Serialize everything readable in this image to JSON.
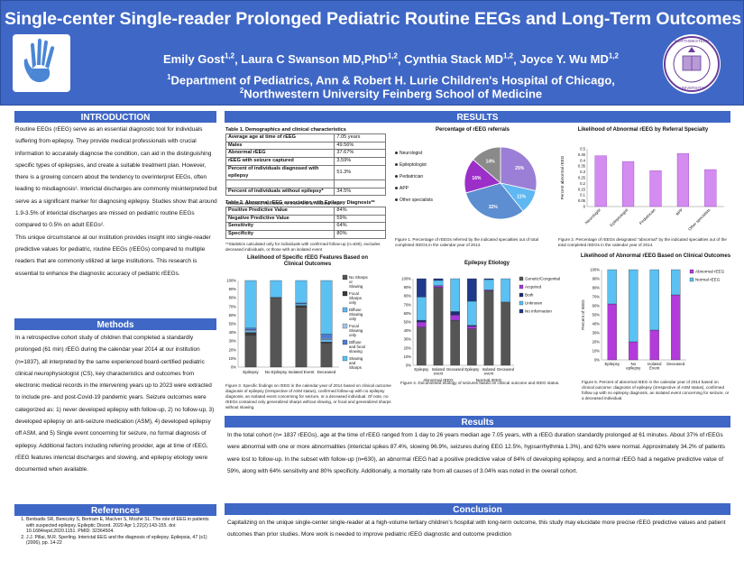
{
  "header": {
    "title": "Single-center Single-reader Prolonged Pediatric Routine EEGs and Long-Term Outcomes",
    "authors": [
      {
        "name": "Emily Gost",
        "sup": "1,2"
      },
      {
        "name": "Laura C Swanson MD,PhD",
        "sup": "1,2"
      },
      {
        "name": "Cynthia Stack MD",
        "sup": "1,2"
      },
      {
        "name": "Joyce Y. Wu MD",
        "sup": "1,2"
      }
    ],
    "affil1_sup": "1",
    "affil1": "Department of Pediatrics, Ann & Robert H. Lurie Children's Hospital of Chicago,",
    "affil2_sup": "2",
    "affil2": "Northwestern University Feinberg School of Medicine",
    "colors": {
      "primary": "#3f67c6"
    }
  },
  "introduction": {
    "heading": "INTRODUCTION",
    "text": "Routine EEGs (rEEG) serve as an essential diagnostic tool for individuals suffering from epilepsy. They provide medical professionals with crucial information to accurately diagnose the condition, can aid in the distinguishing specific types of epilepsies, and create a suitable treatment plan. However, there is a growing concern about the tendency to overinterpret EEGs, often leading to misdiagnosis¹. Interictal discharges are commonly misinterpreted but serve as a significant marker for diagnosing epilepsy. Studies show that around 1.9-3.5% of interictal discharges are missed on pediatric routine EEGs compared to 0.5% on adult EEGs².",
    "text2": "This unique circumstance at our institution provides insight into single-reader predictive values for pediatric, routine EEGs (rEEGs) compared to multiple readers that are commonly utilized at large institutions. This research is essential to enhance the diagnostic accuracy of pediatric rEEGs."
  },
  "methods": {
    "heading": "Methods",
    "text": "In a retrospective cohort study of children that completed a standardly prolonged (61 min) rEEG during the calendar year 2014 at our institution (n=1837), all interpreted by the same experienced board-certified pediatric clinical neurophysiologist (CS), key characteristics and outcomes from electronic medical records in the intervening years up to 2023 were extracted to include pre- and post-Covid-19 pandemic years. Seizure outcomes were categorized as: 1) never developed epilepsy with follow-up, 2) no follow-up, 3) developed epilepsy on anti-seizure medication (ASM), 4) developed epilepsy off ASM, and 5) Single event concerning for seizure, no formal diagnosis of epilepsy. Additional factors including referring provider, age at time of rEEG, rEEG features interictal discharges and slowing, and epilepsy etiology were documented when available."
  },
  "references": {
    "heading": "References",
    "items": [
      "Benbadis SR, Beniczky S, Bertram E, MacIver S, Moshé SL. The role of EEG in patients with suspected epilepsy. Epileptic Disord. 2020 Apr 1;22(2):143-155. doi: 10.1684/epd.2020.1151. PMID: 32364504.",
      "J.J. Pillai, M.R. Sperling. Interictal EEG and the diagnosis of epilepsy. Epilepsia, 47 (s1) (2006), pp. 14-22"
    ]
  },
  "results_top": {
    "heading": "RESULTS",
    "table1": {
      "title": "Table 1. Demographics and clinical characteristics",
      "rows": [
        [
          "Average age at time of rEEG",
          "7.05 years"
        ],
        [
          "Males",
          "49.56%"
        ],
        [
          "Abnormal rEEG",
          "37.67%"
        ],
        [
          "rEEG with seizure captured",
          "3.59%"
        ],
        [
          "Percent of individuals diagnosed with epilepsy",
          "51.3%"
        ],
        [
          "",
          ""
        ],
        [
          "Percent of individuals without epilepsy*",
          "34.5%"
        ]
      ],
      "footnote": "*excludes deceased individuals, or those with an isolated event"
    },
    "table2": {
      "title": "Table 2. Abnormal rEEG association with Epilepsy Diagnosis**",
      "rows": [
        [
          "Positive Predictive Value",
          "84%"
        ],
        [
          "Negative Predictive Value",
          "59%"
        ],
        [
          "Sensitivity",
          "64%"
        ],
        [
          "Specificity",
          "80%"
        ]
      ],
      "footnote": "**Statistics calculated only for individuals with confirmed follow-up (n=630), excludes deceased individuals, or those with an isolated event"
    }
  },
  "fig1": {
    "caption": "Figure 1. Percentage of rEEGs referred by the indicated specialties out of total completed rEEGs in the calendar year of 2014.",
    "chart_data": {
      "type": "pie",
      "title": "Percentage of rEEG referrals",
      "labels": [
        "Neurologist",
        "Epileptologist",
        "Pediatrician",
        "APP",
        "Other specialists"
      ],
      "values": [
        29,
        11,
        32,
        16,
        14
      ],
      "data_labels": [
        "29%",
        "11%",
        "32%",
        "16%",
        "14%"
      ],
      "colors": [
        "#9b7fd6",
        "#5fb8f2",
        "#5c8ed1",
        "#9b2fc8",
        "#8a8a8a"
      ]
    }
  },
  "fig2": {
    "caption": "Figure 2. Percentage of rEEGs designated \"abnormal\" by the indicated specialties out of the total completed rEEGs in the calendar year of 2014.",
    "chart_data": {
      "type": "bar",
      "title": "Likelihood of Abnormal rEEG by Referral Specialty",
      "categories": [
        "Neurologist",
        "Epileptologist",
        "Pediatrician",
        "APP",
        "Other specialists"
      ],
      "values": [
        0.44,
        0.39,
        0.31,
        0.46,
        0.32
      ],
      "ylabel": "Percent abnormal rEEG",
      "ylim": [
        0,
        0.5
      ],
      "yticks": [
        "0",
        "0.05",
        "0.1",
        "0.15",
        "0.2",
        "0.25",
        "0.3",
        "0.35",
        "0.4",
        "0.45",
        "0.5"
      ],
      "color": "#d58cf0"
    }
  },
  "fig3": {
    "caption": "Figure 3. Specific findings on rEEG in the calendar year of 2014 based on clinical outcome diagnosis of epilepsy (irrespective of ASM status), confirmed follow-up with no epilepsy diagnosis, an isolated event concerning for seizure, or a deceased individual. Of note, no rEEGs contained only generalized sharps without slowing, or focal and generalized sharps without slowing.",
    "chart_data": {
      "type": "bar",
      "stacked": true,
      "title": "Likelihood of Specific rEEG Features Based on Clinical Outcomes",
      "categories": [
        "Epilepsy",
        "No Epilepsy",
        "Isolated Event",
        "Deceased"
      ],
      "ylim": [
        0,
        1
      ],
      "yticks": [
        "0%",
        "10%",
        "20%",
        "30%",
        "40%",
        "50%",
        "60%",
        "70%",
        "80%",
        "90%",
        "100%"
      ],
      "series": [
        {
          "name": "No Sharps or Slowing",
          "color": "#555555",
          "values": [
            0.37,
            0.8,
            0.69,
            0.28
          ]
        },
        {
          "name": "Focal Sharps only",
          "color": "#3a3a3a",
          "values": [
            0.03,
            0.0,
            0.02,
            0.01
          ]
        },
        {
          "name": "Diffuse Slowing only",
          "color": "#62b5ea",
          "values": [
            0.02,
            0.01,
            0.02,
            0.03
          ]
        },
        {
          "name": "Focal Slowing only",
          "color": "#a7c5ec",
          "values": [
            0.01,
            0.0,
            0.0,
            0.01
          ]
        },
        {
          "name": "Diffuse and focal slowing",
          "color": "#4d7bd1",
          "values": [
            0.02,
            0.0,
            0.01,
            0.05
          ]
        },
        {
          "name": "Slowing and Sharps",
          "color": "#5bc0f2",
          "values": [
            0.55,
            0.19,
            0.26,
            0.62
          ]
        }
      ]
    }
  },
  "fig4": {
    "caption": "Figure 4. Documented etiology of seizures based on clinical outcome and rEEG status.",
    "chart_data": {
      "type": "bar",
      "stacked": true,
      "title": "Epilepsy Etiology",
      "categories": [
        "Epilepsy",
        "Isolated event",
        "Deceased",
        "Epilepsy",
        "Isolated event",
        "Deceased"
      ],
      "groups": [
        "Abnormal rEEG",
        "Normal rEEG"
      ],
      "ylim": [
        0,
        1
      ],
      "yticks": [
        "0%",
        "10%",
        "20%",
        "30%",
        "40%",
        "50%",
        "60%",
        "70%",
        "80%",
        "90%",
        "100%"
      ],
      "series": [
        {
          "name": "Genetic/Congenital",
          "color": "#555555",
          "values": [
            0.44,
            0.9,
            0.52,
            0.42,
            0.86,
            0.73
          ]
        },
        {
          "name": "Acquired",
          "color": "#a33ad6",
          "values": [
            0.06,
            0.02,
            0.06,
            0.03,
            0.01,
            0.0
          ]
        },
        {
          "name": "Both",
          "color": "#1d2f73",
          "values": [
            0.02,
            0.0,
            0.04,
            0.01,
            0.0,
            0.0
          ]
        },
        {
          "name": "Unknown",
          "color": "#5bc0f2",
          "values": [
            0.27,
            0.06,
            0.38,
            0.28,
            0.12,
            0.27
          ]
        },
        {
          "name": "No information",
          "color": "#1f3a8a",
          "values": [
            0.21,
            0.02,
            0.0,
            0.26,
            0.01,
            0.0
          ]
        }
      ]
    }
  },
  "fig5": {
    "caption": "Figure 5. Percent of abnormal rEEG in the calendar year of 2014 based on clinical outcome: diagnosis of epilepsy (irrespective of ASM status), confirmed follow up with no epilepsy diagnosis, an isolated event concerning for seizure, or a deceased individual.",
    "chart_data": {
      "type": "bar",
      "stacked": true,
      "title": "Likelihood of Abnormal rEEG Based on Clinical Outcomes",
      "categories": [
        "Epilepsy",
        "No epilepsy",
        "Isolated Event",
        "Deceased"
      ],
      "ylabel": "Percent of rEEG",
      "ylim": [
        0,
        1
      ],
      "yticks": [
        "0%",
        "10%",
        "20%",
        "30%",
        "40%",
        "50%",
        "60%",
        "70%",
        "80%",
        "90%",
        "100%"
      ],
      "series": [
        {
          "name": "Abnormal rEEG",
          "color": "#b33adb",
          "values": [
            0.62,
            0.2,
            0.33,
            0.72
          ]
        },
        {
          "name": "Normal rEEG",
          "color": "#5bc0f2",
          "values": [
            0.38,
            0.8,
            0.67,
            0.28
          ]
        }
      ]
    }
  },
  "results_bottom": {
    "heading": "Results",
    "text": "In the total cohort (n= 1837 rEEGs), age at the time of rEEG ranged from 1 day to 26 years median age 7.05 years, with a rEEG duration standardly prolonged at 61 minutes. About 37% of rEEGs were abnormal with one or more abnormalities (interictal spikes 87.4%, slowing 96.9%, seizures during EEG 12.5%, hypsarrhythmia 1.3%), and 62% were normal. Approximately 34.2% of patients were lost to follow-up. In the subset with follow-up (n=630), an abnormal rEEG had a positive predictive value of 84% of developing epilepsy, and a normal rEEG had a negative predictive value of 59%, along with 64% sensitivity and 80% specificity. Additionally, a mortality rate from all causes of 3.04% was noted in the overall cohort."
  },
  "conclusion": {
    "heading": "Conclusion",
    "text": "Capitalizing on the unique single-center single-reader at a high-volume tertiary children's hospital with long-term outcome, this study may elucidate more precise rEEG predictive values and patient outcomes than prior studies. More work is needed to improve pediatric rEEG diagnostic and outcome prediction"
  }
}
